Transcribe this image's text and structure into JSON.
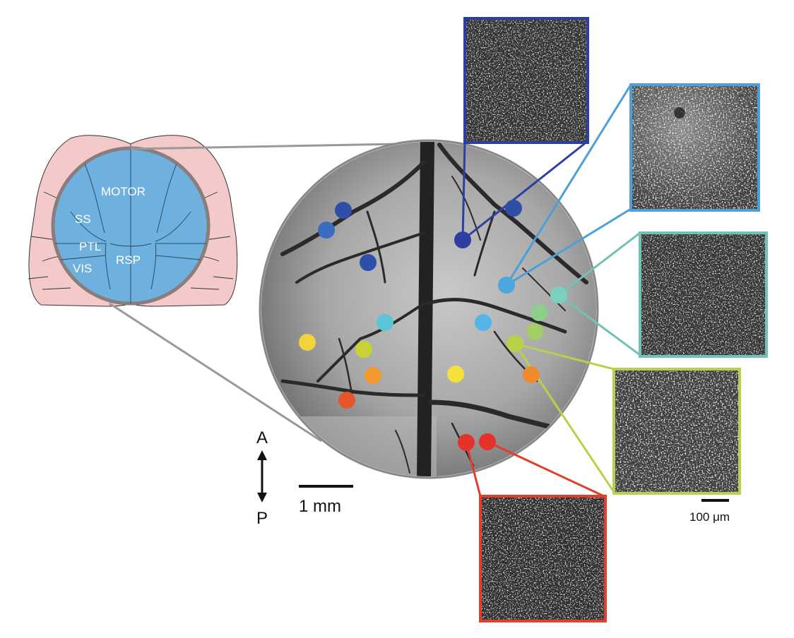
{
  "brain_map": {
    "regions": [
      "MOTOR",
      "SS",
      "PTL",
      "VIS",
      "RSP"
    ],
    "outline_fill": "#f3c9c9",
    "window_fill": "#6fb1de"
  },
  "orientation": {
    "anterior": "A",
    "posterior": "P"
  },
  "scale_bars": {
    "macro": "1 mm",
    "micro": "100 μm"
  },
  "imaging_sites": [
    {
      "color": "#2e4fa8"
    },
    {
      "color": "#3a6cc0"
    },
    {
      "color": "#2e4fa8"
    },
    {
      "color": "#2e3da0"
    },
    {
      "color": "#2e4fa8"
    },
    {
      "color": "#4da6dd"
    },
    {
      "color": "#5cc4d4"
    },
    {
      "color": "#55b5e8"
    },
    {
      "color": "#7cd0c0"
    },
    {
      "color": "#8ccf8a"
    },
    {
      "color": "#a3cd66"
    },
    {
      "color": "#b8d14a"
    },
    {
      "color": "#c8d234"
    },
    {
      "color": "#f2d33a"
    },
    {
      "color": "#f6e13c"
    },
    {
      "color": "#f29a30"
    },
    {
      "color": "#ef8b2c"
    },
    {
      "color": "#e8552a"
    },
    {
      "color": "#e3332a"
    },
    {
      "color": "#e3332a"
    }
  ],
  "insets": [
    {
      "color": "#2d3fa0"
    },
    {
      "color": "#4c9fd8"
    },
    {
      "color": "#71c2b4"
    },
    {
      "color": "#b6d14d"
    },
    {
      "color": "#e0402a"
    }
  ]
}
